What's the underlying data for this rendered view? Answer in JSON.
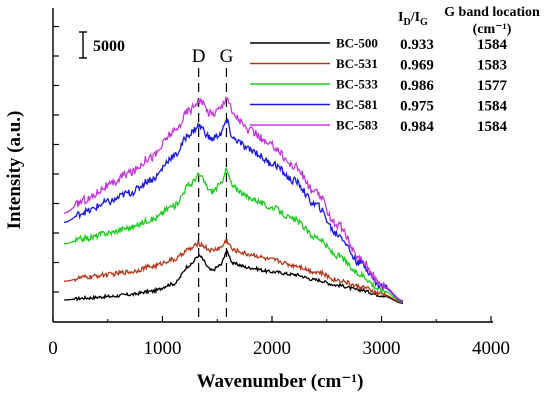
{
  "chart_data": {
    "type": "line",
    "xlabel": "Wavenumber (cm⁻¹)",
    "ylabel": "Intensity (a.u.)",
    "xlim": [
      0,
      4000
    ],
    "x_ticks": [
      "0",
      "1000",
      "2000",
      "3000",
      "4000"
    ],
    "scale_bar_label": "5000",
    "peak_labels": [
      {
        "label": "D",
        "x": 1330
      },
      {
        "label": "G",
        "x": 1584
      }
    ],
    "table": {
      "col1_header_main": "I",
      "col1_header_sub1": "D",
      "col1_header_slash": "/I",
      "col1_header_sub2": "G",
      "col2_header_line1": "G band location",
      "col2_header_line2": "(cm⁻¹)"
    },
    "series": [
      {
        "name": "BC-500",
        "color": "#000000",
        "id_ig": "0.933",
        "g_band": "1584",
        "points": [
          [
            100,
            0
          ],
          [
            300,
            0.15
          ],
          [
            500,
            0.25
          ],
          [
            700,
            0.4
          ],
          [
            900,
            0.65
          ],
          [
            1100,
            1.2
          ],
          [
            1250,
            2.6
          ],
          [
            1330,
            3.3
          ],
          [
            1450,
            2.2
          ],
          [
            1530,
            2.6
          ],
          [
            1584,
            3.6
          ],
          [
            1650,
            2.7
          ],
          [
            1800,
            2.4
          ],
          [
            2000,
            2.1
          ],
          [
            2200,
            1.9
          ],
          [
            2400,
            1.5
          ],
          [
            2600,
            1.1
          ],
          [
            2800,
            0.75
          ],
          [
            3000,
            0.35
          ],
          [
            3200,
            -0.25
          ]
        ]
      },
      {
        "name": "BC-531",
        "color": "#b03a1e",
        "id_ig": "0.969",
        "g_band": "1583",
        "points": [
          [
            100,
            1.4
          ],
          [
            300,
            1.7
          ],
          [
            500,
            1.9
          ],
          [
            700,
            2.1
          ],
          [
            900,
            2.5
          ],
          [
            1100,
            3.0
          ],
          [
            1250,
            3.8
          ],
          [
            1330,
            4.2
          ],
          [
            1450,
            3.7
          ],
          [
            1530,
            3.9
          ],
          [
            1584,
            4.4
          ],
          [
            1650,
            3.7
          ],
          [
            1800,
            3.4
          ],
          [
            2000,
            3.0
          ],
          [
            2200,
            2.6
          ],
          [
            2400,
            2.1
          ],
          [
            2600,
            1.5
          ],
          [
            2800,
            1.0
          ],
          [
            3000,
            0.45
          ],
          [
            3200,
            -0.2
          ]
        ]
      },
      {
        "name": "BC-533",
        "color": "#1fcc1f",
        "id_ig": "0.986",
        "g_band": "1577",
        "points": [
          [
            100,
            4.2
          ],
          [
            300,
            4.6
          ],
          [
            500,
            5.0
          ],
          [
            700,
            5.4
          ],
          [
            900,
            6.0
          ],
          [
            1100,
            7.0
          ],
          [
            1250,
            8.6
          ],
          [
            1330,
            9.3
          ],
          [
            1450,
            8.1
          ],
          [
            1530,
            8.6
          ],
          [
            1577,
            9.7
          ],
          [
            1650,
            8.4
          ],
          [
            1800,
            7.6
          ],
          [
            2000,
            6.9
          ],
          [
            2200,
            6.0
          ],
          [
            2400,
            4.7
          ],
          [
            2600,
            3.3
          ],
          [
            2800,
            1.9
          ],
          [
            3000,
            0.75
          ],
          [
            3200,
            -0.15
          ]
        ]
      },
      {
        "name": "BC-581",
        "color": "#1a1ad8",
        "id_ig": "0.975",
        "g_band": "1584",
        "points": [
          [
            100,
            5.8
          ],
          [
            300,
            6.6
          ],
          [
            500,
            7.3
          ],
          [
            700,
            8.0
          ],
          [
            900,
            9.0
          ],
          [
            1100,
            10.7
          ],
          [
            1250,
            12.4
          ],
          [
            1330,
            13.0
          ],
          [
            1450,
            12.0
          ],
          [
            1530,
            12.4
          ],
          [
            1584,
            13.3
          ],
          [
            1650,
            12.0
          ],
          [
            1800,
            11.2
          ],
          [
            2000,
            10.2
          ],
          [
            2200,
            8.9
          ],
          [
            2400,
            7.1
          ],
          [
            2600,
            4.9
          ],
          [
            2800,
            2.8
          ],
          [
            3000,
            1.05
          ],
          [
            3200,
            -0.1
          ]
        ]
      },
      {
        "name": "BC-583",
        "color": "#c23ad6",
        "id_ig": "0.984",
        "g_band": "1584",
        "points": [
          [
            100,
            6.5
          ],
          [
            300,
            7.5
          ],
          [
            500,
            8.5
          ],
          [
            700,
            9.5
          ],
          [
            900,
            10.7
          ],
          [
            1100,
            12.5
          ],
          [
            1250,
            14.2
          ],
          [
            1330,
            14.9
          ],
          [
            1450,
            13.9
          ],
          [
            1530,
            14.3
          ],
          [
            1584,
            15.2
          ],
          [
            1650,
            13.8
          ],
          [
            1800,
            12.6
          ],
          [
            2000,
            11.5
          ],
          [
            2200,
            10.0
          ],
          [
            2400,
            8.0
          ],
          [
            2600,
            5.6
          ],
          [
            2800,
            3.1
          ],
          [
            3000,
            1.15
          ],
          [
            3200,
            -0.05
          ]
        ]
      }
    ]
  }
}
